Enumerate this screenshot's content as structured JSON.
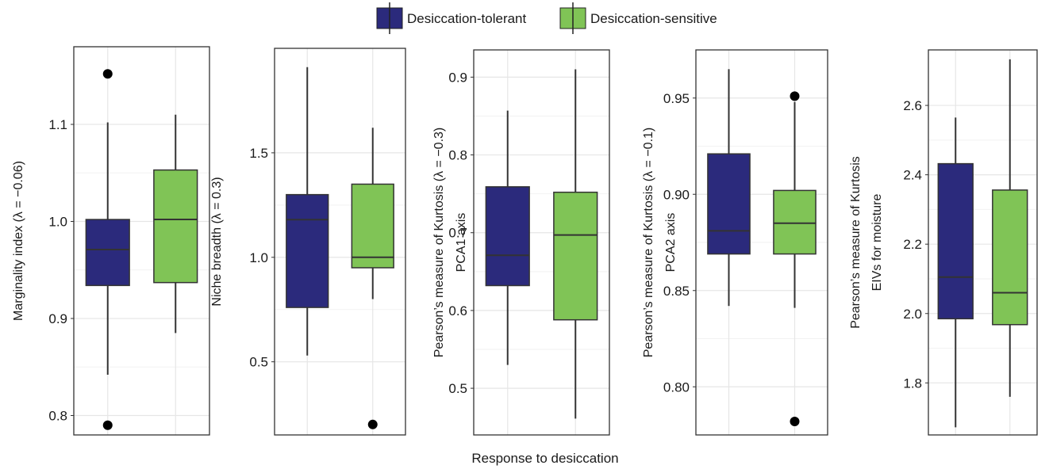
{
  "legend": [
    {
      "label": "Desiccation-tolerant",
      "color": "#2b2a7c"
    },
    {
      "label": "Desiccation-sensitive",
      "color": "#80c456"
    }
  ],
  "x_axis_title": "Response to desiccation",
  "chart_data": [
    {
      "type": "box",
      "ylabel_lines": [
        "Marginality index (λ = −0.06)"
      ],
      "ylim": [
        0.78,
        1.18
      ],
      "yticks": [
        0.8,
        0.9,
        1.0,
        1.1
      ],
      "ytick_labels": [
        "0.8",
        "0.9",
        "1.0",
        "1.1"
      ],
      "categories": [
        "Desiccation-tolerant",
        "Desiccation-sensitive"
      ],
      "boxes": [
        {
          "whisker_low": 0.842,
          "q1": 0.934,
          "median": 0.971,
          "q3": 1.002,
          "whisker_high": 1.102,
          "outliers": [
            0.79,
            1.152
          ]
        },
        {
          "whisker_low": 0.885,
          "q1": 0.937,
          "median": 1.002,
          "q3": 1.053,
          "whisker_high": 1.11,
          "outliers": []
        }
      ]
    },
    {
      "type": "box",
      "ylabel_lines": [
        "Niche breadth (λ = 0.3)"
      ],
      "ylim": [
        0.15,
        2.0
      ],
      "yticks": [
        0.5,
        1.0,
        1.5
      ],
      "ytick_labels": [
        "0.5",
        "1.0",
        "1.5"
      ],
      "categories": [
        "Desiccation-tolerant",
        "Desiccation-sensitive"
      ],
      "boxes": [
        {
          "whisker_low": 0.53,
          "q1": 0.76,
          "median": 1.18,
          "q3": 1.3,
          "whisker_high": 1.91,
          "outliers": []
        },
        {
          "whisker_low": 0.8,
          "q1": 0.95,
          "median": 1.0,
          "q3": 1.35,
          "whisker_high": 1.62,
          "outliers": [
            0.2
          ]
        }
      ]
    },
    {
      "type": "box",
      "ylabel_lines": [
        "Pearson’s measure of Kurtosis (λ = −0.3)",
        "PCA1 axis"
      ],
      "ylim": [
        0.44,
        0.935
      ],
      "yticks": [
        0.5,
        0.6,
        0.7,
        0.8,
        0.9
      ],
      "ytick_labels": [
        "0.5",
        "0.6",
        "0.7",
        "0.8",
        "0.9"
      ],
      "categories": [
        "Desiccation-tolerant",
        "Desiccation-sensitive"
      ],
      "boxes": [
        {
          "whisker_low": 0.53,
          "q1": 0.632,
          "median": 0.671,
          "q3": 0.759,
          "whisker_high": 0.857,
          "outliers": []
        },
        {
          "whisker_low": 0.461,
          "q1": 0.588,
          "median": 0.697,
          "q3": 0.752,
          "whisker_high": 0.91,
          "outliers": []
        }
      ]
    },
    {
      "type": "box",
      "ylabel_lines": [
        "Pearson’s measure of Kurtosis (λ = −0.1)",
        "PCA2 axis"
      ],
      "ylim": [
        0.775,
        0.975
      ],
      "yticks": [
        0.8,
        0.85,
        0.9,
        0.95
      ],
      "ytick_labels": [
        "0.80",
        "0.85",
        "0.90",
        "0.95"
      ],
      "categories": [
        "Desiccation-tolerant",
        "Desiccation-sensitive"
      ],
      "boxes": [
        {
          "whisker_low": 0.842,
          "q1": 0.869,
          "median": 0.881,
          "q3": 0.921,
          "whisker_high": 0.965,
          "outliers": []
        },
        {
          "whisker_low": 0.841,
          "q1": 0.869,
          "median": 0.885,
          "q3": 0.902,
          "whisker_high": 0.948,
          "outliers": [
            0.951,
            0.782
          ]
        }
      ]
    },
    {
      "type": "box",
      "ylabel_lines": [
        "Pearson’s measure of Kurtosis",
        "EIVs for moisture"
      ],
      "ylim": [
        1.65,
        2.76
      ],
      "yticks": [
        1.8,
        2.0,
        2.2,
        2.4,
        2.6
      ],
      "ytick_labels": [
        "1.8",
        "2.0",
        "2.2",
        "2.4",
        "2.6"
      ],
      "categories": [
        "Desiccation-tolerant",
        "Desiccation-sensitive"
      ],
      "boxes": [
        {
          "whisker_low": 1.672,
          "q1": 1.985,
          "median": 2.105,
          "q3": 2.432,
          "whisker_high": 2.565,
          "outliers": []
        },
        {
          "whisker_low": 1.76,
          "q1": 1.968,
          "median": 2.06,
          "q3": 2.356,
          "whisker_high": 2.733,
          "outliers": []
        }
      ]
    }
  ]
}
